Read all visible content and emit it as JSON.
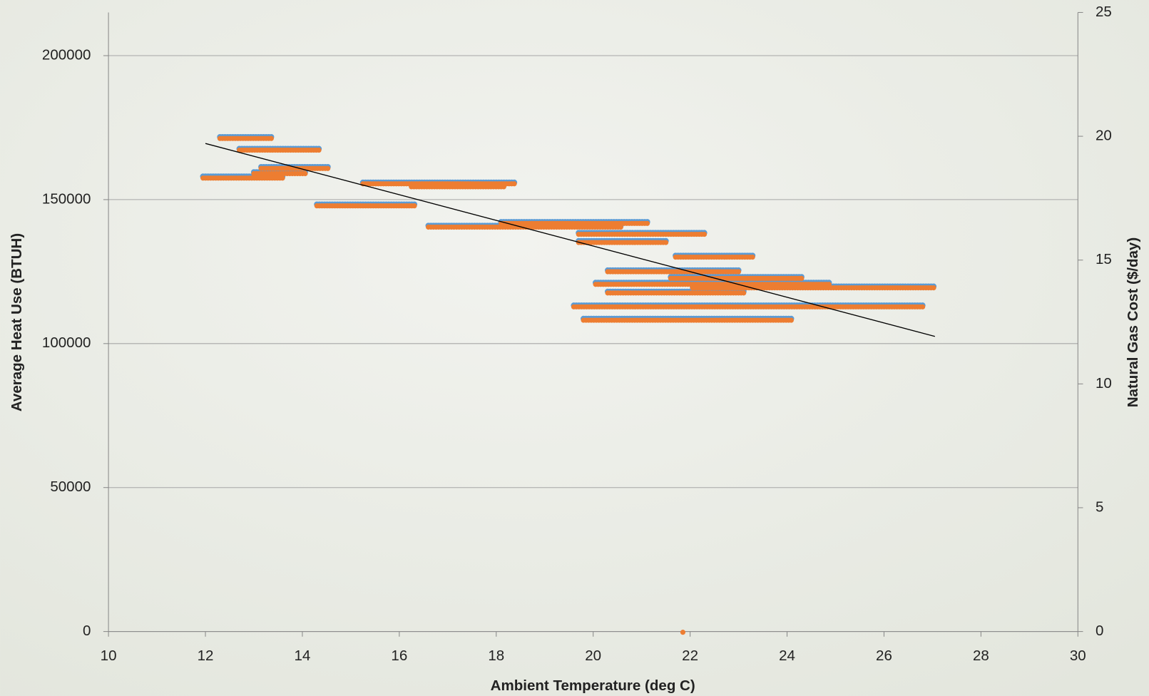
{
  "chart_data": {
    "type": "scatter",
    "x_label": "Ambient Temperature (deg C)",
    "y_label": "Average Heat Use (BTUH)",
    "y2_label": "Natural Gas Cost ($/day)",
    "xlim": [
      10,
      30
    ],
    "xticks": [
      10,
      12,
      14,
      16,
      18,
      20,
      22,
      24,
      26,
      28,
      30
    ],
    "ylim": [
      0,
      215000
    ],
    "yticks": [
      0,
      50000,
      100000,
      150000,
      200000
    ],
    "y2lim": [
      0,
      25
    ],
    "y2ticks": [
      0,
      5,
      10,
      15,
      20,
      25
    ],
    "grid": true,
    "series": [
      {
        "color": "#5b9bd5",
        "x": [
          12.3,
          13.4,
          null,
          12.7,
          14.35,
          null,
          13.15,
          14.55,
          null,
          13.0,
          14.1,
          null,
          11.95,
          13.6,
          null,
          15.25,
          18.4,
          null,
          16.25,
          18.2,
          null,
          14.3,
          16.35,
          null,
          18.1,
          21.15,
          null,
          16.6,
          20.6,
          null,
          19.7,
          22.3,
          null,
          19.7,
          21.55,
          null,
          21.7,
          23.3,
          null,
          20.3,
          23.0,
          null,
          21.6,
          24.3,
          null,
          20.05,
          24.9,
          null,
          22.05,
          27.05,
          null,
          20.3,
          23.15,
          null,
          19.6,
          26.8,
          null,
          19.8,
          24.1
        ],
        "values": [
          171500,
          171500,
          null,
          167400,
          167400,
          null,
          161100,
          161100,
          null,
          159300,
          159300,
          null,
          157800,
          157800,
          null,
          155700,
          155700,
          null,
          154700,
          154700,
          null,
          148100,
          148100,
          null,
          142000,
          142000,
          null,
          140700,
          140700,
          null,
          138200,
          138200,
          null,
          135400,
          135400,
          null,
          130300,
          130300,
          null,
          125200,
          125200,
          null,
          122900,
          122900,
          null,
          120900,
          120900,
          null,
          119600,
          119600,
          null,
          117800,
          117800,
          null,
          113000,
          113000,
          null,
          108400,
          108400
        ]
      },
      {
        "color": "#ed7d31",
        "axis": "y2",
        "x": [
          12.3,
          13.4,
          null,
          12.7,
          14.35,
          null,
          13.15,
          14.55,
          null,
          13.0,
          14.1,
          null,
          11.95,
          13.6,
          null,
          15.25,
          18.4,
          null,
          16.25,
          18.2,
          null,
          14.3,
          16.35,
          null,
          18.1,
          21.15,
          null,
          16.6,
          20.6,
          null,
          19.7,
          22.3,
          null,
          19.7,
          21.55,
          null,
          21.7,
          23.3,
          null,
          20.3,
          23.0,
          null,
          21.6,
          24.3,
          null,
          20.05,
          24.9,
          null,
          22.05,
          27.05,
          null,
          20.3,
          23.15,
          null,
          19.6,
          26.8,
          null,
          19.8,
          24.1,
          null,
          21.85
        ],
        "values": [
          19.94,
          19.94,
          null,
          19.47,
          19.47,
          null,
          18.73,
          18.73,
          null,
          18.52,
          18.52,
          null,
          18.34,
          18.34,
          null,
          18.11,
          18.11,
          null,
          17.99,
          17.99,
          null,
          17.22,
          17.22,
          null,
          16.51,
          16.51,
          null,
          16.36,
          16.36,
          null,
          16.07,
          16.07,
          null,
          15.74,
          15.74,
          null,
          15.15,
          15.15,
          null,
          14.56,
          14.56,
          null,
          14.29,
          14.29,
          null,
          14.05,
          14.05,
          null,
          13.91,
          13.91,
          null,
          13.7,
          13.7,
          null,
          13.14,
          13.14,
          null,
          12.6,
          12.6,
          null,
          0
        ]
      }
    ],
    "trendline": {
      "color": "#000000",
      "x": [
        12,
        27.05
      ],
      "values": [
        169500,
        102500
      ]
    }
  }
}
